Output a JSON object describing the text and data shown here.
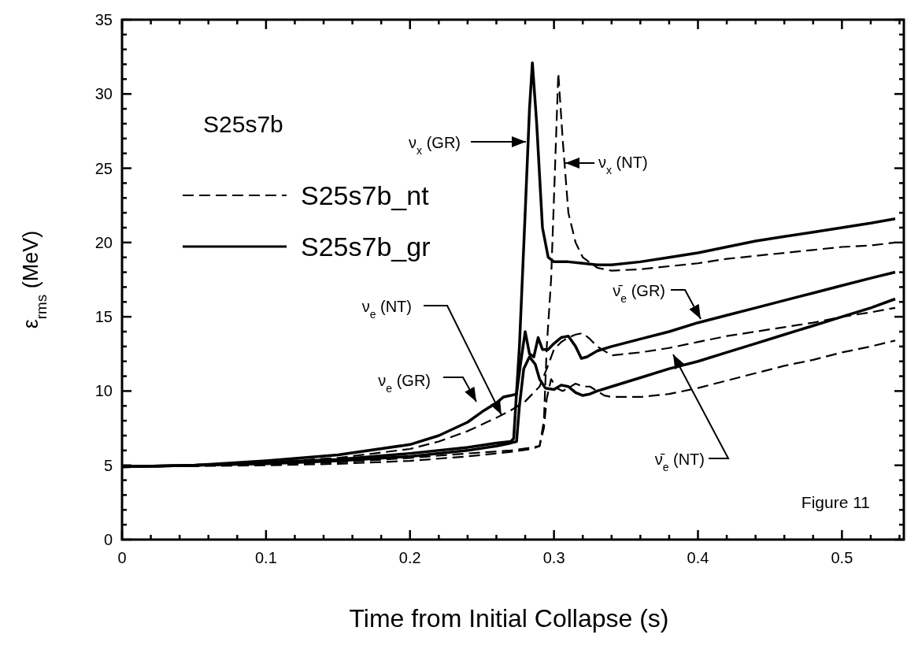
{
  "chart_data": {
    "type": "line",
    "title": "S25s7b",
    "xlabel": "Time from Initial Collapse (s)",
    "ylabel": "ε$_{rms}$ (MeV)",
    "xlim": [
      0,
      0.543
    ],
    "ylim": [
      0,
      35
    ],
    "xticks": [
      0,
      {
        "value": 0.02,
        "label": null
      },
      {
        "value": 0.04,
        "label": null
      },
      {
        "value": 0.06,
        "label": null
      },
      {
        "value": 0.08,
        "label": null
      },
      0.1,
      {
        "value": 0.12,
        "label": null
      },
      {
        "value": 0.14,
        "label": null
      },
      {
        "value": 0.16,
        "label": null
      },
      {
        "value": 0.18,
        "label": null
      },
      0.2,
      {
        "value": 0.22,
        "label": null
      },
      {
        "value": 0.24,
        "label": null
      },
      {
        "value": 0.26,
        "label": null
      },
      {
        "value": 0.28,
        "label": null
      },
      0.3,
      {
        "value": 0.32,
        "label": null
      },
      {
        "value": 0.34,
        "label": null
      },
      {
        "value": 0.36,
        "label": null
      },
      {
        "value": 0.38,
        "label": null
      },
      0.4,
      {
        "value": 0.42,
        "label": null
      },
      {
        "value": 0.44,
        "label": null
      },
      {
        "value": 0.46,
        "label": null
      },
      {
        "value": 0.48,
        "label": null
      },
      0.5,
      {
        "value": 0.52,
        "label": null
      },
      {
        "value": 0.54,
        "label": null
      }
    ],
    "yticks": [
      0,
      {
        "value": 1,
        "label": null
      },
      {
        "value": 2,
        "label": null
      },
      {
        "value": 3,
        "label": null
      },
      {
        "value": 4,
        "label": null
      },
      5,
      {
        "value": 6,
        "label": null
      },
      {
        "value": 7,
        "label": null
      },
      {
        "value": 8,
        "label": null
      },
      {
        "value": 9,
        "label": null
      },
      10,
      {
        "value": 11,
        "label": null
      },
      {
        "value": 12,
        "label": null
      },
      {
        "value": 13,
        "label": null
      },
      {
        "value": 14,
        "label": null
      },
      15,
      {
        "value": 16,
        "label": null
      },
      {
        "value": 17,
        "label": null
      },
      {
        "value": 18,
        "label": null
      },
      {
        "value": 19,
        "label": null
      },
      20,
      {
        "value": 21,
        "label": null
      },
      {
        "value": 22,
        "label": null
      },
      {
        "value": 23,
        "label": null
      },
      {
        "value": 24,
        "label": null
      },
      25,
      {
        "value": 26,
        "label": null
      },
      {
        "value": 27,
        "label": null
      },
      {
        "value": 28,
        "label": null
      },
      {
        "value": 29,
        "label": null
      },
      30,
      {
        "value": 31,
        "label": null
      },
      {
        "value": 32,
        "label": null
      },
      {
        "value": 33,
        "label": null
      },
      {
        "value": 34,
        "label": null
      },
      35
    ],
    "grid": false,
    "legend": "top left",
    "series": [
      {
        "name": "S25s7b_nt",
        "color": "#000000",
        "line_style": "dashed",
        "x": [
          0,
          0.05,
          0.1,
          0.15,
          0.2,
          0.24,
          0.27,
          0.285,
          0.29,
          0.293,
          0.295,
          0.298,
          0.3,
          0.303,
          0.306,
          0.31,
          0.315,
          0.32,
          0.33,
          0.34,
          0.36,
          0.38,
          0.4,
          0.42,
          0.44,
          0.46,
          0.48,
          0.5,
          0.52,
          0.537
        ],
        "values": [
          4.9,
          4.95,
          5.1,
          5.2,
          5.5,
          5.8,
          6.0,
          6.2,
          6.3,
          8,
          13,
          17.5,
          23,
          31.4,
          27,
          22,
          20,
          19,
          18.3,
          18.1,
          18.2,
          18.4,
          18.6,
          18.9,
          19.1,
          19.3,
          19.5,
          19.7,
          19.8,
          20.0
        ]
      },
      {
        "name": "S25s7b_gr",
        "color": "#000000",
        "line_style": "solid",
        "x": [
          0,
          0.05,
          0.1,
          0.15,
          0.2,
          0.24,
          0.26,
          0.27,
          0.272,
          0.276,
          0.28,
          0.283,
          0.285,
          0.288,
          0.292,
          0.296,
          0.3,
          0.305,
          0.31,
          0.32,
          0.33,
          0.34,
          0.36,
          0.38,
          0.4,
          0.42,
          0.44,
          0.46,
          0.48,
          0.5,
          0.52,
          0.537
        ],
        "values": [
          4.9,
          5.0,
          5.2,
          5.4,
          5.8,
          6.2,
          6.5,
          6.6,
          6.8,
          13,
          22,
          29,
          32.1,
          28,
          21,
          19,
          18.7,
          18.7,
          18.7,
          18.6,
          18.5,
          18.5,
          18.7,
          19.0,
          19.3,
          19.7,
          20.1,
          20.4,
          20.7,
          21.0,
          21.3,
          21.6
        ]
      },
      {
        "color": "#000000",
        "line_style": "solid",
        "x": [
          0,
          0.05,
          0.1,
          0.15,
          0.2,
          0.22,
          0.24,
          0.25,
          0.26,
          0.265,
          0.27,
          0.274,
          0.277,
          0.28,
          0.283,
          0.286,
          0.289,
          0.292,
          0.296,
          0.3,
          0.305,
          0.31,
          0.315,
          0.319,
          0.323,
          0.33,
          0.34,
          0.36,
          0.38,
          0.4,
          0.42,
          0.44,
          0.46,
          0.48,
          0.5,
          0.52,
          0.537
        ],
        "values": [
          4.9,
          5.0,
          5.3,
          5.7,
          6.4,
          7.0,
          7.9,
          8.6,
          9.2,
          9.6,
          9.7,
          9.8,
          12,
          14,
          12.5,
          12.3,
          13.6,
          12.8,
          12.8,
          13.2,
          13.6,
          13.7,
          13.0,
          12.2,
          12.3,
          12.7,
          13.0,
          13.5,
          14.0,
          14.6,
          15.1,
          15.6,
          16.1,
          16.6,
          17.1,
          17.6,
          18.0
        ]
      },
      {
        "color": "#000000",
        "line_style": "dashed",
        "x": [
          0,
          0.05,
          0.1,
          0.15,
          0.2,
          0.22,
          0.24,
          0.26,
          0.27,
          0.28,
          0.29,
          0.295,
          0.3,
          0.305,
          0.31,
          0.315,
          0.32,
          0.325,
          0.33,
          0.34,
          0.36,
          0.38,
          0.4,
          0.42,
          0.44,
          0.46,
          0.48,
          0.5,
          0.52,
          0.537
        ],
        "values": [
          4.9,
          5.0,
          5.2,
          5.5,
          6.1,
          6.6,
          7.3,
          8.2,
          8.7,
          9.3,
          10.3,
          11.5,
          12.8,
          13.3,
          13.6,
          13.8,
          13.9,
          13.5,
          13.0,
          12.4,
          12.6,
          12.9,
          13.3,
          13.7,
          14.0,
          14.3,
          14.6,
          15.0,
          15.3,
          15.6
        ]
      },
      {
        "color": "#000000",
        "line_style": "solid",
        "x": [
          0,
          0.05,
          0.1,
          0.15,
          0.2,
          0.24,
          0.26,
          0.27,
          0.274,
          0.276,
          0.279,
          0.283,
          0.287,
          0.29,
          0.294,
          0.3,
          0.305,
          0.31,
          0.315,
          0.32,
          0.325,
          0.33,
          0.34,
          0.36,
          0.38,
          0.4,
          0.42,
          0.44,
          0.46,
          0.48,
          0.5,
          0.52,
          0.537
        ],
        "values": [
          4.9,
          5.0,
          5.1,
          5.3,
          5.6,
          6.0,
          6.3,
          6.5,
          6.6,
          9,
          11.5,
          12.3,
          11.8,
          10.8,
          10.2,
          10.1,
          10.4,
          10.3,
          9.9,
          9.7,
          9.8,
          10.0,
          10.3,
          10.9,
          11.5,
          12.0,
          12.6,
          13.2,
          13.8,
          14.4,
          15.0,
          15.6,
          16.2
        ]
      },
      {
        "color": "#000000",
        "line_style": "dashed",
        "x": [
          0,
          0.05,
          0.1,
          0.15,
          0.2,
          0.24,
          0.27,
          0.285,
          0.29,
          0.293,
          0.295,
          0.298,
          0.302,
          0.306,
          0.31,
          0.315,
          0.32,
          0.325,
          0.33,
          0.335,
          0.34,
          0.36,
          0.38,
          0.4,
          0.42,
          0.44,
          0.46,
          0.48,
          0.5,
          0.52,
          0.537
        ],
        "values": [
          4.9,
          4.95,
          5.0,
          5.1,
          5.3,
          5.6,
          5.9,
          6.1,
          6.3,
          7.5,
          9.5,
          10.8,
          10.2,
          10.0,
          10.2,
          10.5,
          10.3,
          10.3,
          10.0,
          9.7,
          9.6,
          9.6,
          9.8,
          10.2,
          10.7,
          11.2,
          11.7,
          12.1,
          12.6,
          13.0,
          13.4
        ]
      }
    ],
    "annotations": [
      "Figure 11",
      "ν$_{x}$ (GR)",
      "ν$_{x}$ (NT)",
      {
        "text": "ν$_{e}$ (NT)",
        "x": 0.2635,
        "y": 8.4
      },
      "ν$_{e}$ (GR)",
      "ν̄$_{e}$ (GR)",
      "ν̄$_{e}$ (NT)"
    ]
  }
}
